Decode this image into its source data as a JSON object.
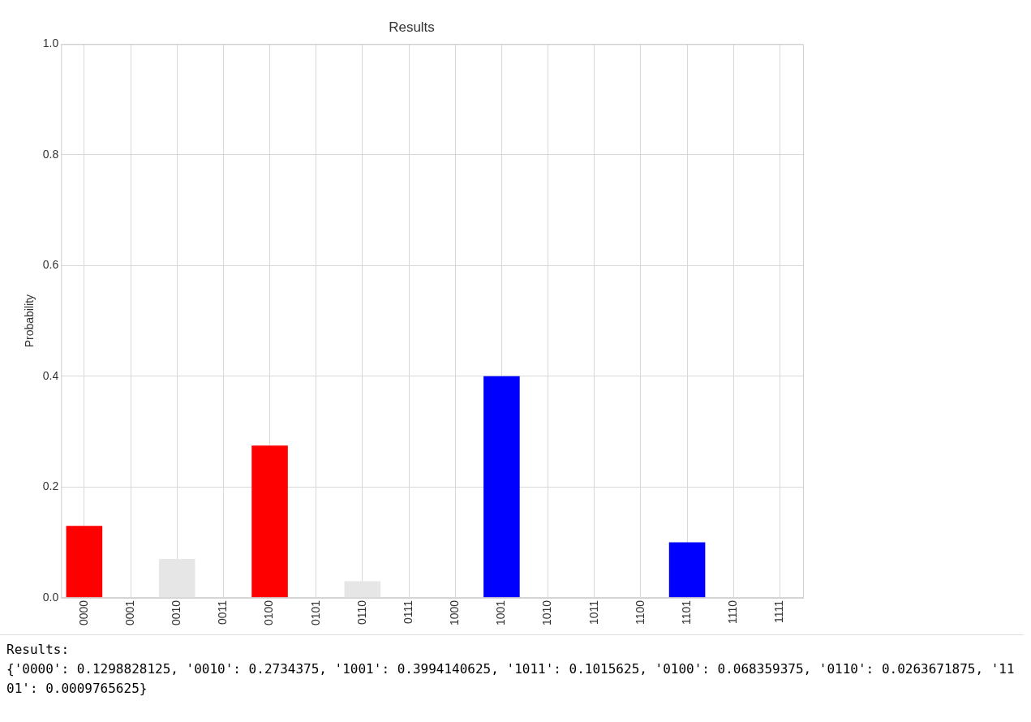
{
  "chart_data": {
    "type": "bar",
    "title": "Results",
    "ylabel": "Probability",
    "categories": [
      "0000",
      "0001",
      "0010",
      "0011",
      "0100",
      "0101",
      "0110",
      "0111",
      "1000",
      "1001",
      "1010",
      "1011",
      "1100",
      "1101",
      "1110",
      "1111"
    ],
    "values": [
      0.13,
      0,
      0.07,
      0,
      0.275,
      0,
      0.03,
      0,
      0,
      0.4,
      0,
      0,
      0,
      0.1,
      0,
      0
    ],
    "colors": [
      "#ff0000",
      "#e6e6e6",
      "#e6e6e6",
      "#e6e6e6",
      "#ff0000",
      "#e6e6e6",
      "#e6e6e6",
      "#e6e6e6",
      "#e6e6e6",
      "#0000ff",
      "#e6e6e6",
      "#e6e6e6",
      "#e6e6e6",
      "#0000ff",
      "#e6e6e6",
      "#e6e6e6"
    ],
    "ylim": [
      0,
      1
    ],
    "yticks": [
      {
        "value": 0,
        "label": "0.0"
      },
      {
        "value": 0.2,
        "label": "0.2"
      },
      {
        "value": 0.4,
        "label": "0.4"
      },
      {
        "value": 0.6,
        "label": "0.6"
      },
      {
        "value": 0.8,
        "label": "0.8"
      },
      {
        "value": 1,
        "label": "1.0"
      }
    ],
    "grid": true,
    "annotations": [
      "Results:",
      "{'0000': 0.1298828125, '0010': 0.2734375, '1001': 0.3994140625, '1011': 0.1015625, '0100': 0.068359375, '0110': 0.0263671875, '1101': 0.0009765625}"
    ]
  }
}
